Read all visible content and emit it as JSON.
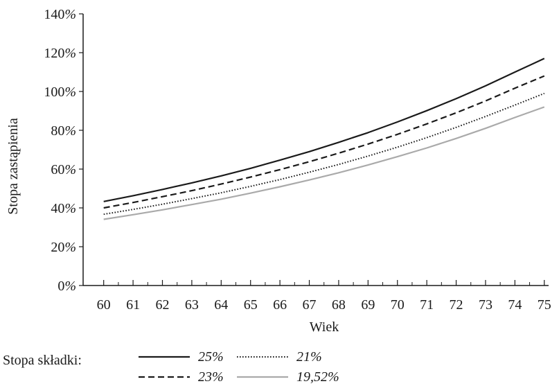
{
  "chart_data": {
    "type": "line",
    "title": "",
    "xlabel": "Wiek",
    "ylabel": "Stopa zastąpienia",
    "x": [
      60,
      61,
      62,
      63,
      64,
      65,
      66,
      67,
      68,
      69,
      70,
      71,
      72,
      73,
      74,
      75
    ],
    "xticks": [
      "60",
      "61",
      "62",
      "63",
      "64",
      "65",
      "66",
      "67",
      "68",
      "69",
      "70",
      "71",
      "72",
      "73",
      "74",
      "75"
    ],
    "yticks": [
      "0%",
      "20%",
      "40%",
      "60%",
      "80%",
      "100%",
      "120%",
      "140%"
    ],
    "ylim": [
      0,
      140
    ],
    "xlim": [
      59.3,
      75.1
    ],
    "grid": false,
    "legend_title": "Stopa składki:",
    "legend_position": "bottom",
    "series": [
      {
        "name": "25%",
        "style": "solid",
        "color": "#1a1a1a",
        "values": [
          43.3,
          46.3,
          49.5,
          52.9,
          56.5,
          60.4,
          64.6,
          69.0,
          73.8,
          78.8,
          84.3,
          90.1,
          96.3,
          102.9,
          110.0,
          117.0
        ]
      },
      {
        "name": "23%",
        "style": "dashed",
        "color": "#1a1a1a",
        "values": [
          40.0,
          42.8,
          45.8,
          48.9,
          52.3,
          55.9,
          59.7,
          63.8,
          68.2,
          72.9,
          77.9,
          83.3,
          89.0,
          95.1,
          101.7,
          108.0
        ]
      },
      {
        "name": "21%",
        "style": "dotted",
        "color": "#1a1a1a",
        "values": [
          36.7,
          39.2,
          41.9,
          44.8,
          47.8,
          51.1,
          54.6,
          58.4,
          62.4,
          66.7,
          71.3,
          76.2,
          81.5,
          87.1,
          93.0,
          99.0
        ]
      },
      {
        "name": "19,52%",
        "style": "solid",
        "color": "#aaaaaa",
        "values": [
          34.1,
          36.5,
          39.0,
          41.7,
          44.5,
          47.6,
          50.9,
          54.4,
          58.1,
          62.1,
          66.4,
          70.9,
          75.8,
          81.0,
          86.6,
          92.0
        ]
      }
    ]
  }
}
